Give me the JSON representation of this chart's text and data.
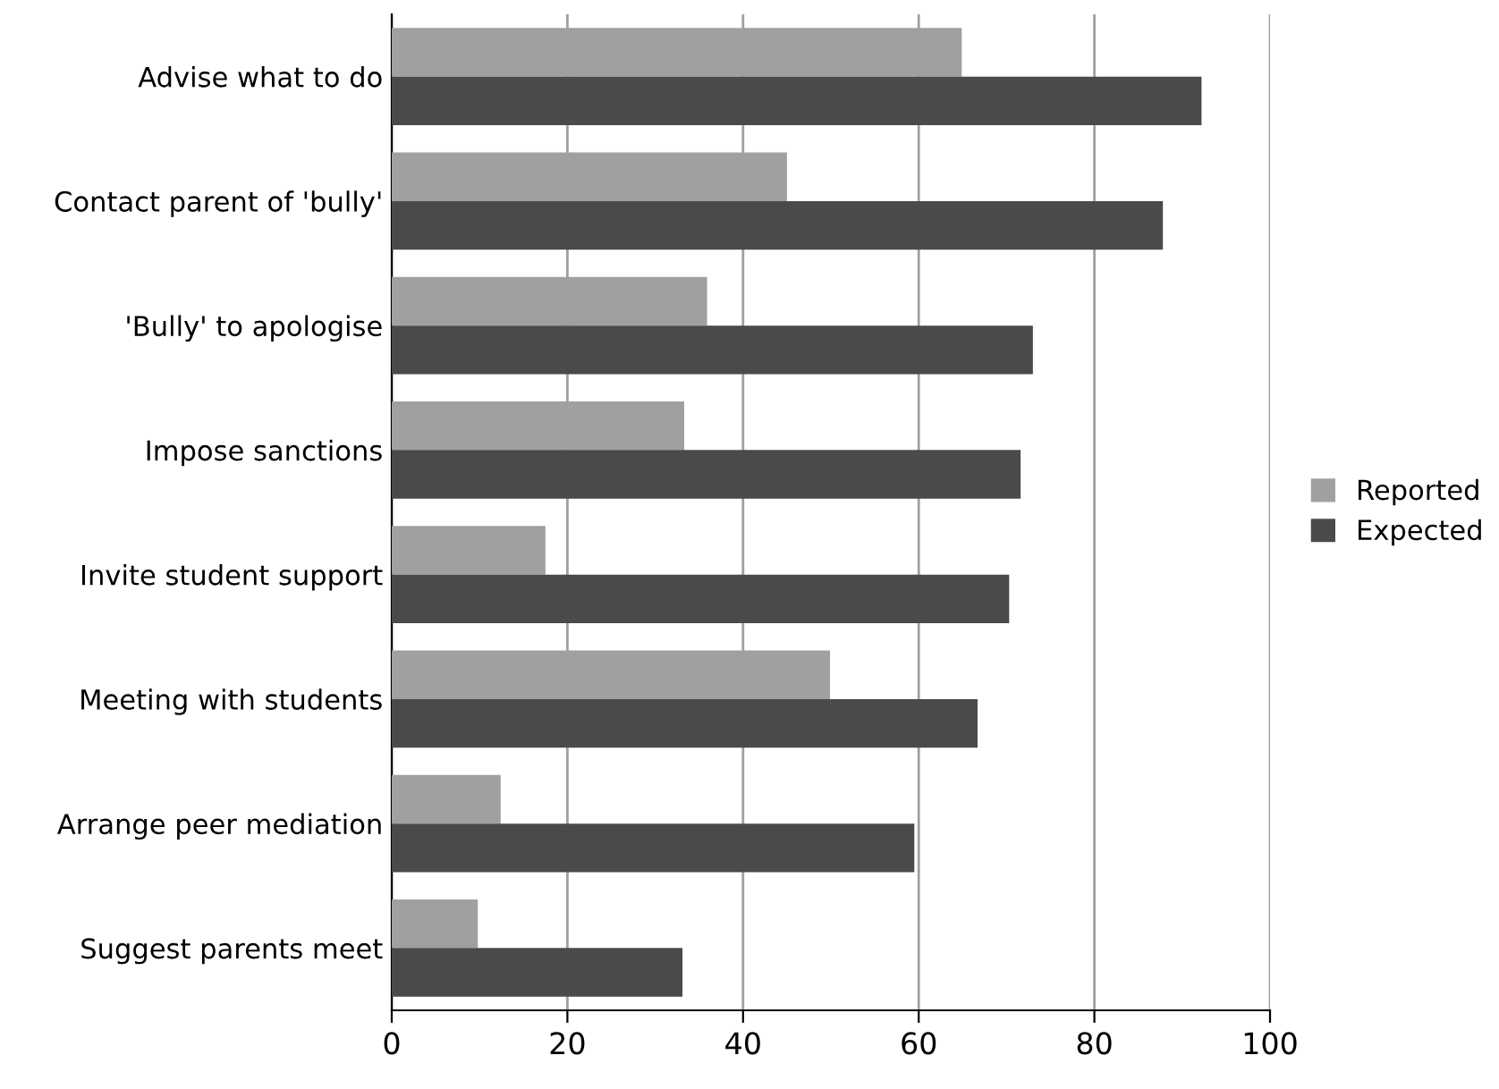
{
  "chart_data": {
    "type": "bar",
    "orientation": "horizontal",
    "categories": [
      "Advise what to do",
      "Contact parent of 'bully'",
      "'Bully' to apologise",
      "Impose sanctions",
      "Invite student support",
      "Meeting with students",
      "Arrange peer mediation",
      "Suggest parents meet"
    ],
    "series": [
      {
        "name": "Reported",
        "color": "#a0a0a0",
        "values": [
          64.9,
          45,
          35.9,
          33.3,
          17.5,
          49.9,
          12.4,
          9.8
        ]
      },
      {
        "name": "Expected",
        "color": "#4a4a4a",
        "values": [
          92.2,
          87.8,
          73,
          71.6,
          70.3,
          66.7,
          59.5,
          33.1
        ]
      }
    ],
    "xlim": [
      0,
      100
    ],
    "xticks": [
      0,
      20,
      40,
      60,
      80,
      100
    ],
    "grid": "x",
    "legend": "right"
  }
}
